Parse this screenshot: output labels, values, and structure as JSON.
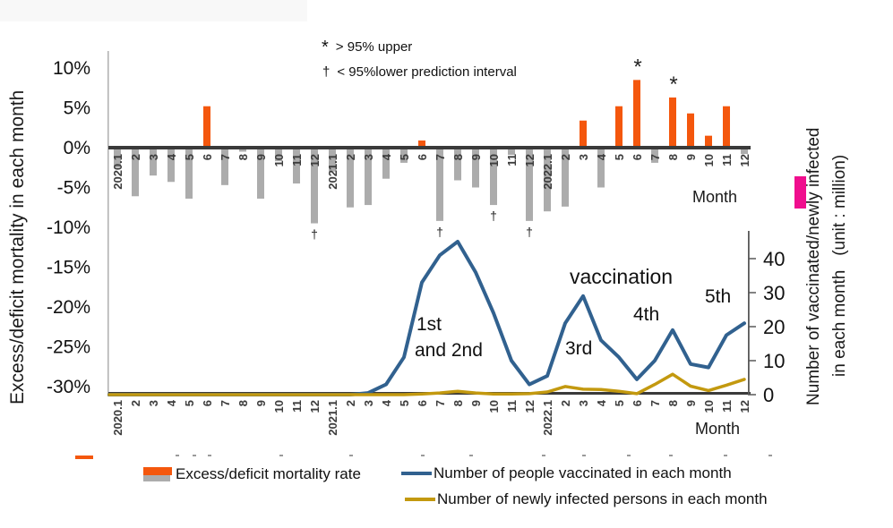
{
  "figure": {
    "background": "#ffffff",
    "top_strip_color": "#f8f8f8"
  },
  "colors": {
    "orange": "#F4570D",
    "gray_bar": "#ACACAC",
    "axis_dark": "#3A3A3A",
    "spine_gray": "#B3B3B3",
    "right_spine": "#595959",
    "blue": "#31618F",
    "gold": "#C3990F",
    "magenta": "#F00E8E",
    "tick_text": "#3C3C3C"
  },
  "top_chart": {
    "ylabel": "Excess/deficit mortality in each month",
    "yticks": [
      "10%",
      "5%",
      "0%",
      "-5%",
      "-10%",
      "-15%",
      "-20%",
      "-25%",
      "-30%"
    ],
    "xlabel": "Month",
    "note_star_symbol": "*",
    "note_star_text": "> 95% upper",
    "note_dagger_symbol": "†",
    "note_dagger_text": "< 95%lower prediction interval"
  },
  "bottom_chart": {
    "ylabel_line1": "Number of vaccinated/newly infected",
    "ylabel_line2": "in each month   (unit : million)",
    "yticks": [
      40,
      30,
      20,
      10,
      0
    ],
    "xlabel": "Month",
    "annotation_vaccination": "vaccination",
    "annotation_wave1": "1st",
    "annotation_wave1b": "and 2nd",
    "annotation_wave3": "3rd",
    "annotation_wave4": "4th",
    "annotation_wave5": "5th"
  },
  "legend": {
    "mortality_label": "Excess/deficit mortality rate",
    "vaccinated_label": "Number of people vaccinated in each month",
    "infected_label": "Number of newly infected persons in each month"
  },
  "chart_data": [
    {
      "type": "bar",
      "title": "Excess/deficit mortality in each month",
      "ylabel": "Excess/deficit mortality in each month",
      "xlabel": "Month",
      "ylim": [
        -30,
        10
      ],
      "ytick_values_pct": [
        10,
        5,
        0,
        -5,
        -10,
        -15,
        -20,
        -25,
        -30
      ],
      "categories": [
        "2020.1",
        "2",
        "3",
        "4",
        "5",
        "6",
        "7",
        "8",
        "9",
        "10",
        "11",
        "12",
        "2021.1",
        "2",
        "3",
        "4",
        "5",
        "6",
        "7",
        "8",
        "9",
        "10",
        "11",
        "12",
        "2022.1",
        "2",
        "3",
        "4",
        "5",
        "6",
        "7",
        "8",
        "9",
        "10",
        "11",
        "12"
      ],
      "values": [
        -2.5,
        -6.1,
        -3.5,
        -4.3,
        -6.4,
        5.2,
        -4.7,
        -0.5,
        -6.4,
        -1.7,
        -4.5,
        -9.5,
        -3,
        -7.5,
        -7.2,
        -3.9,
        -1.9,
        0.9,
        -9.2,
        -4.1,
        -5,
        -7.2,
        -0.9,
        -9.2,
        -8,
        -7.4,
        3.4,
        -5,
        5.2,
        8.5,
        -1.9,
        6.3,
        4.3,
        1.5,
        5.2,
        -0.8
      ],
      "color_rule": "positive bars orange, negative bars gray",
      "markers": {
        "star": [
          29,
          31
        ],
        "dagger": [
          11,
          18,
          21,
          23
        ]
      },
      "significance": {
        "above_95_upper": [
          "2022.6",
          "2022.8"
        ],
        "below_95_lower": [
          "2020.12",
          "2021.7",
          "2021.10",
          "2021.12"
        ]
      }
    },
    {
      "type": "line",
      "ylabel": "Number of vaccinated/newly infected in each month (unit : million)",
      "xlabel": "Month",
      "ylim": [
        0,
        45
      ],
      "yticks": [
        0,
        10,
        20,
        30,
        40
      ],
      "categories": [
        "2020.1",
        "2",
        "3",
        "4",
        "5",
        "6",
        "7",
        "8",
        "9",
        "10",
        "11",
        "12",
        "2021.1",
        "2",
        "3",
        "4",
        "5",
        "6",
        "7",
        "8",
        "9",
        "10",
        "11",
        "12",
        "2022.1",
        "2",
        "3",
        "4",
        "5",
        "6",
        "7",
        "8",
        "9",
        "10",
        "11",
        "12"
      ],
      "series": [
        {
          "name": "Number of people vaccinated in each month",
          "color_key": "blue",
          "values": [
            0,
            0,
            0,
            0,
            0,
            0,
            0,
            0,
            0,
            0,
            0,
            0,
            0,
            0,
            0.5,
            3,
            11,
            33,
            41,
            45,
            36,
            24,
            10,
            3,
            5.5,
            21,
            29,
            16,
            11,
            4.5,
            10,
            19,
            9,
            8,
            17.5,
            21
          ]
        },
        {
          "name": "Number of newly infected persons in each month",
          "color_key": "gold",
          "values": [
            0,
            0,
            0,
            0,
            0,
            0,
            0,
            0,
            0,
            0,
            0,
            0,
            0,
            0,
            0,
            0,
            0,
            0.2,
            0.5,
            1,
            0.5,
            0.2,
            0.2,
            0.3,
            0.8,
            2.4,
            1.6,
            1.5,
            1,
            0.3,
            3,
            6,
            2.5,
            1.2,
            2.8,
            4.5
          ]
        }
      ],
      "annotations": [
        "1st",
        "and 2nd",
        "3rd",
        "4th",
        "5th",
        "vaccination"
      ]
    }
  ]
}
